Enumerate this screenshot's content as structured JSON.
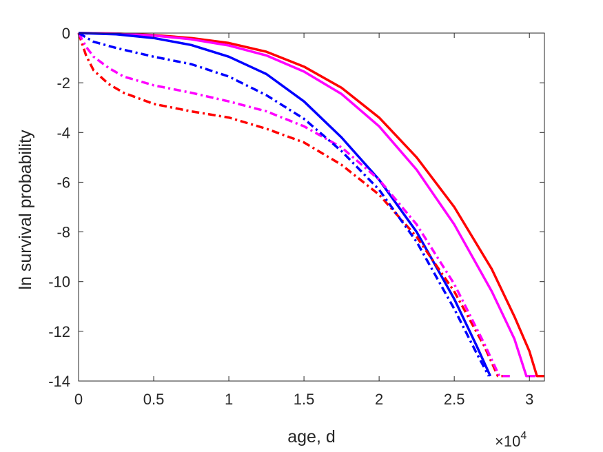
{
  "chart_data": {
    "type": "line",
    "xlabel": "age, d",
    "ylabel": "ln survival probability",
    "x_multiplier": {
      "base": "×10",
      "exponent": "4"
    },
    "xlim": [
      0,
      31000
    ],
    "ylim": [
      -14,
      0
    ],
    "x_ticks": [
      0,
      5000,
      10000,
      15000,
      20000,
      25000,
      30000
    ],
    "x_tick_labels": [
      "0",
      "0.5",
      "1",
      "1.5",
      "2",
      "2.5",
      "3"
    ],
    "y_ticks": [
      0,
      -2,
      -4,
      -6,
      -8,
      -10,
      -12,
      -14
    ],
    "y_tick_labels": [
      "0",
      "-2",
      "-4",
      "-6",
      "-8",
      "-10",
      "-12",
      "-14"
    ],
    "grid": false,
    "box": true,
    "series": [
      {
        "color": "#ff0000",
        "style": "solid",
        "points": [
          [
            0,
            0
          ],
          [
            2500,
            -0.02
          ],
          [
            5000,
            -0.08
          ],
          [
            7500,
            -0.2
          ],
          [
            10000,
            -0.4
          ],
          [
            12500,
            -0.75
          ],
          [
            15000,
            -1.35
          ],
          [
            17500,
            -2.2
          ],
          [
            20000,
            -3.4
          ],
          [
            22500,
            -5.0
          ],
          [
            25000,
            -7.0
          ],
          [
            27500,
            -9.5
          ],
          [
            29000,
            -11.4
          ],
          [
            30000,
            -12.8
          ],
          [
            30500,
            -13.8
          ],
          [
            31000,
            -13.8
          ]
        ]
      },
      {
        "color": "#ff00ff",
        "style": "solid",
        "points": [
          [
            0,
            0
          ],
          [
            2500,
            -0.02
          ],
          [
            5000,
            -0.1
          ],
          [
            7500,
            -0.25
          ],
          [
            10000,
            -0.5
          ],
          [
            12500,
            -0.9
          ],
          [
            15000,
            -1.55
          ],
          [
            17500,
            -2.45
          ],
          [
            20000,
            -3.75
          ],
          [
            22500,
            -5.5
          ],
          [
            25000,
            -7.7
          ],
          [
            27500,
            -10.4
          ],
          [
            29000,
            -12.3
          ],
          [
            29800,
            -13.8
          ],
          [
            30400,
            -13.8
          ]
        ]
      },
      {
        "color": "#0000ff",
        "style": "solid",
        "points": [
          [
            0,
            0
          ],
          [
            2500,
            -0.05
          ],
          [
            5000,
            -0.2
          ],
          [
            7500,
            -0.48
          ],
          [
            10000,
            -0.95
          ],
          [
            12500,
            -1.65
          ],
          [
            15000,
            -2.75
          ],
          [
            17500,
            -4.2
          ],
          [
            20000,
            -5.9
          ],
          [
            22500,
            -8.0
          ],
          [
            25000,
            -10.7
          ],
          [
            26500,
            -12.6
          ],
          [
            27400,
            -13.8
          ]
        ]
      },
      {
        "color": "#ff0000",
        "style": "dashdot",
        "points": [
          [
            0,
            0
          ],
          [
            500,
            -0.9
          ],
          [
            1000,
            -1.5
          ],
          [
            2000,
            -2.05
          ],
          [
            3000,
            -2.4
          ],
          [
            5000,
            -2.85
          ],
          [
            7500,
            -3.15
          ],
          [
            10000,
            -3.4
          ],
          [
            12500,
            -3.85
          ],
          [
            15000,
            -4.4
          ],
          [
            17500,
            -5.3
          ],
          [
            20000,
            -6.5
          ],
          [
            22500,
            -8.2
          ],
          [
            25000,
            -10.4
          ],
          [
            27000,
            -12.6
          ],
          [
            27900,
            -13.8
          ],
          [
            28400,
            -13.8
          ]
        ]
      },
      {
        "color": "#ff00ff",
        "style": "dashdot",
        "points": [
          [
            0,
            0
          ],
          [
            500,
            -0.55
          ],
          [
            1000,
            -0.95
          ],
          [
            2000,
            -1.4
          ],
          [
            3000,
            -1.75
          ],
          [
            5000,
            -2.1
          ],
          [
            7500,
            -2.4
          ],
          [
            10000,
            -2.75
          ],
          [
            12500,
            -3.15
          ],
          [
            15000,
            -3.75
          ],
          [
            17500,
            -4.6
          ],
          [
            20000,
            -5.9
          ],
          [
            22500,
            -7.7
          ],
          [
            25000,
            -10.1
          ],
          [
            27000,
            -12.5
          ],
          [
            28000,
            -13.8
          ],
          [
            28700,
            -13.8
          ]
        ]
      },
      {
        "color": "#0000ff",
        "style": "dashdot",
        "points": [
          [
            0,
            0
          ],
          [
            1000,
            -0.35
          ],
          [
            2500,
            -0.6
          ],
          [
            5000,
            -0.95
          ],
          [
            7500,
            -1.25
          ],
          [
            10000,
            -1.75
          ],
          [
            12500,
            -2.5
          ],
          [
            15000,
            -3.45
          ],
          [
            17500,
            -4.75
          ],
          [
            20000,
            -6.3
          ],
          [
            22500,
            -8.4
          ],
          [
            25000,
            -11.1
          ],
          [
            26500,
            -12.9
          ],
          [
            27300,
            -13.8
          ]
        ]
      }
    ]
  }
}
